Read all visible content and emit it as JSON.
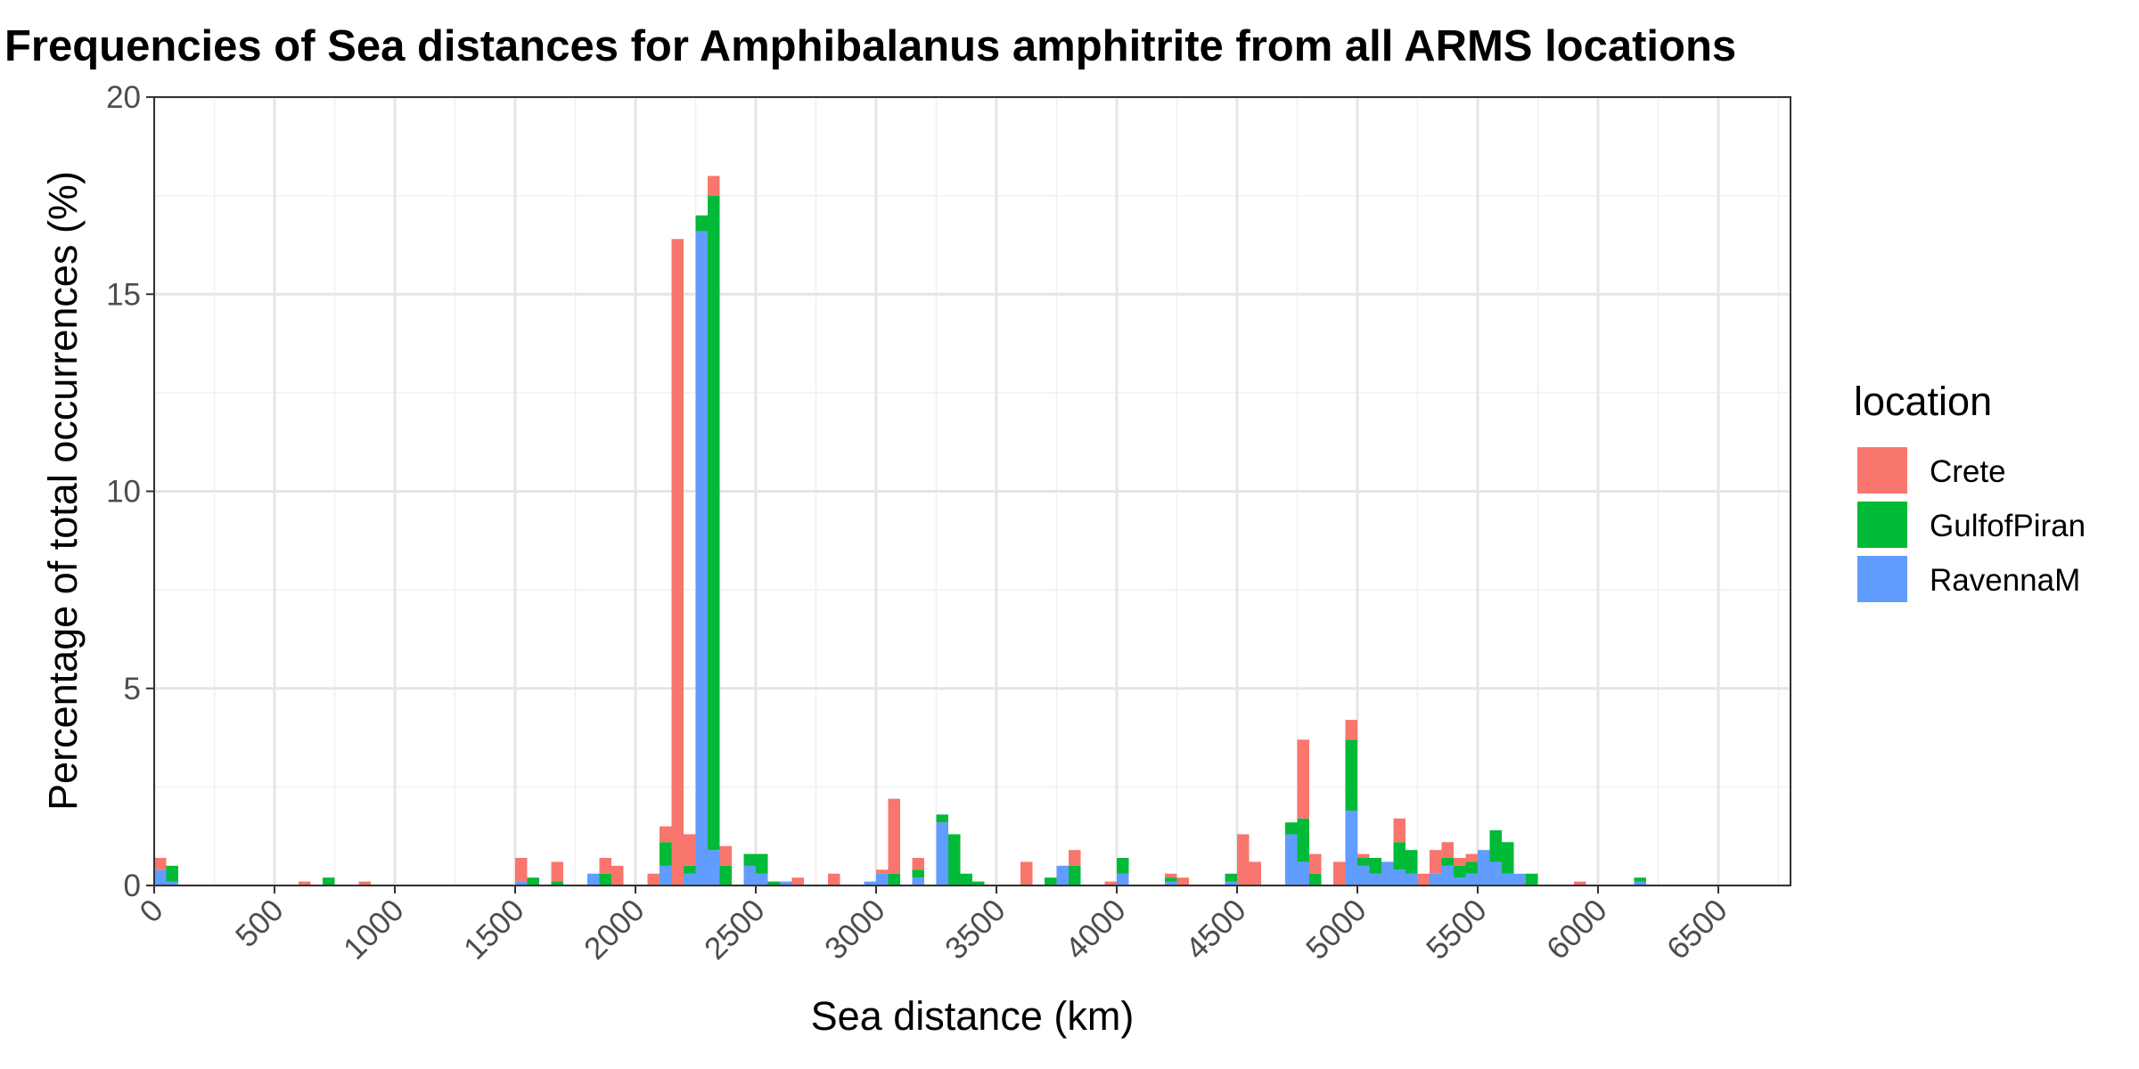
{
  "chart_data": {
    "type": "bar",
    "stacked": true,
    "title": "Frequencies of Sea distances for Amphibalanus amphitrite from all ARMS locations",
    "xlabel": "Sea distance (km)",
    "ylabel": "Percentage of total occurrences (%)",
    "xlim": [
      0,
      6800
    ],
    "ylim": [
      0,
      20
    ],
    "x_ticks": [
      0,
      500,
      1000,
      1500,
      2000,
      2500,
      3000,
      3500,
      4000,
      4500,
      5000,
      5500,
      6000,
      6500
    ],
    "y_ticks": [
      0,
      5,
      10,
      15,
      20
    ],
    "bin_width": 50,
    "grid": true,
    "legend": {
      "title": "location",
      "position": "right"
    },
    "series": [
      {
        "name": "RavennaM",
        "color": "#619CFF",
        "bins": [
          [
            0,
            0.4
          ],
          [
            50,
            0.1
          ],
          [
            1500,
            0.1
          ],
          [
            1800,
            0.3
          ],
          [
            2100,
            0.5
          ],
          [
            2200,
            0.3
          ],
          [
            2250,
            16.6
          ],
          [
            2300,
            0.9
          ],
          [
            2450,
            0.5
          ],
          [
            2500,
            0.3
          ],
          [
            2600,
            0.1
          ],
          [
            2950,
            0.1
          ],
          [
            3000,
            0.3
          ],
          [
            3150,
            0.2
          ],
          [
            3250,
            1.6
          ],
          [
            3750,
            0.5
          ],
          [
            4000,
            0.3
          ],
          [
            4200,
            0.1
          ],
          [
            4450,
            0.1
          ],
          [
            4700,
            1.3
          ],
          [
            4750,
            0.6
          ],
          [
            4950,
            1.9
          ],
          [
            5000,
            0.5
          ],
          [
            5050,
            0.3
          ],
          [
            5100,
            0.6
          ],
          [
            5150,
            0.4
          ],
          [
            5200,
            0.3
          ],
          [
            5300,
            0.3
          ],
          [
            5350,
            0.5
          ],
          [
            5400,
            0.2
          ],
          [
            5450,
            0.3
          ],
          [
            5500,
            0.9
          ],
          [
            5550,
            0.6
          ],
          [
            5600,
            0.3
          ],
          [
            5650,
            0.3
          ],
          [
            6150,
            0.1
          ]
        ]
      },
      {
        "name": "GulfofPiran",
        "color": "#00BA38",
        "bins": [
          [
            50,
            0.4
          ],
          [
            700,
            0.2
          ],
          [
            1550,
            0.2
          ],
          [
            1650,
            0.1
          ],
          [
            1850,
            0.3
          ],
          [
            2100,
            0.6
          ],
          [
            2200,
            0.2
          ],
          [
            2250,
            0.4
          ],
          [
            2300,
            16.6
          ],
          [
            2350,
            0.5
          ],
          [
            2450,
            0.3
          ],
          [
            2500,
            0.5
          ],
          [
            2550,
            0.1
          ],
          [
            3050,
            0.3
          ],
          [
            3150,
            0.2
          ],
          [
            3250,
            0.2
          ],
          [
            3300,
            1.3
          ],
          [
            3350,
            0.3
          ],
          [
            3400,
            0.1
          ],
          [
            3700,
            0.2
          ],
          [
            3800,
            0.5
          ],
          [
            4000,
            0.4
          ],
          [
            4200,
            0.1
          ],
          [
            4450,
            0.2
          ],
          [
            4700,
            0.3
          ],
          [
            4750,
            1.1
          ],
          [
            4800,
            0.3
          ],
          [
            4950,
            1.8
          ],
          [
            5000,
            0.2
          ],
          [
            5050,
            0.4
          ],
          [
            5150,
            0.7
          ],
          [
            5200,
            0.6
          ],
          [
            5350,
            0.2
          ],
          [
            5400,
            0.3
          ],
          [
            5450,
            0.3
          ],
          [
            5550,
            0.8
          ],
          [
            5600,
            0.8
          ],
          [
            5700,
            0.3
          ],
          [
            6150,
            0.1
          ]
        ]
      },
      {
        "name": "Crete",
        "color": "#F8766D",
        "bins": [
          [
            0,
            0.3
          ],
          [
            600,
            0.1
          ],
          [
            850,
            0.1
          ],
          [
            1500,
            0.6
          ],
          [
            1650,
            0.5
          ],
          [
            1850,
            0.4
          ],
          [
            1900,
            0.5
          ],
          [
            2050,
            0.3
          ],
          [
            2100,
            0.4
          ],
          [
            2150,
            16.4
          ],
          [
            2200,
            0.8
          ],
          [
            2300,
            0.5
          ],
          [
            2350,
            0.5
          ],
          [
            2650,
            0.2
          ],
          [
            2800,
            0.3
          ],
          [
            3000,
            0.1
          ],
          [
            3050,
            1.9
          ],
          [
            3150,
            0.3
          ],
          [
            3600,
            0.6
          ],
          [
            3800,
            0.4
          ],
          [
            3950,
            0.1
          ],
          [
            4200,
            0.1
          ],
          [
            4250,
            0.2
          ],
          [
            4500,
            1.3
          ],
          [
            4550,
            0.6
          ],
          [
            4750,
            2.0
          ],
          [
            4800,
            0.5
          ],
          [
            4900,
            0.6
          ],
          [
            4950,
            0.5
          ],
          [
            5000,
            0.1
          ],
          [
            5150,
            0.6
          ],
          [
            5250,
            0.3
          ],
          [
            5300,
            0.6
          ],
          [
            5350,
            0.4
          ],
          [
            5400,
            0.2
          ],
          [
            5450,
            0.2
          ],
          [
            5900,
            0.1
          ]
        ]
      }
    ]
  }
}
